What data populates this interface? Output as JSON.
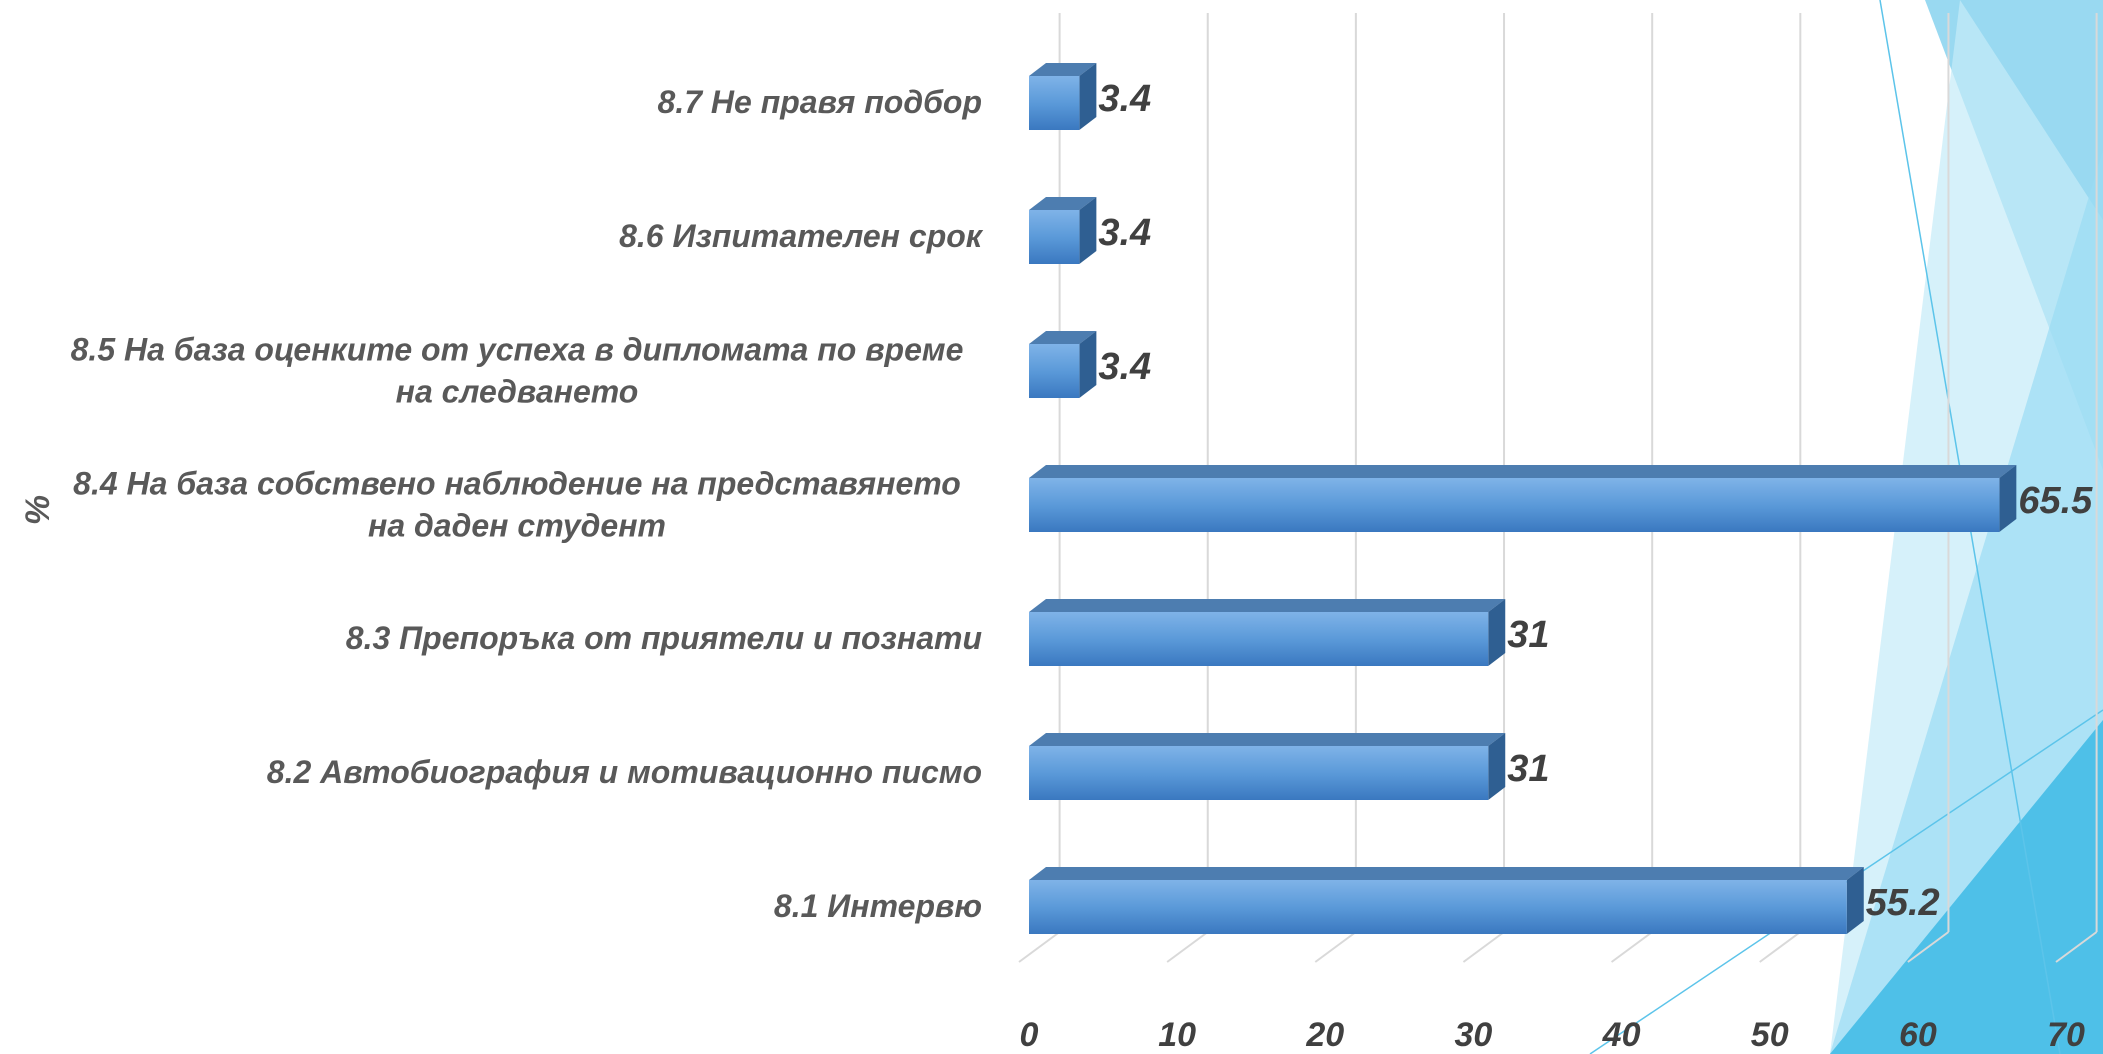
{
  "chart_data": {
    "type": "bar",
    "orientation": "horizontal",
    "axis_label": "%",
    "categories": [
      "8.1 Интервю",
      "8.2 Автобиография и мотивационно писмо",
      "8.3 Препоръка от приятели и познати",
      "8.4 На база собствено наблюдение  на представянето на даден студент",
      "8.5 На база оценките от успеха в дипломата по време на следването",
      "8.6 Изпитателен срок",
      "8.7 Не правя подбор"
    ],
    "values": [
      55.2,
      31,
      31,
      65.5,
      3.4,
      3.4,
      3.4
    ],
    "color": "#4a8fd6",
    "xlim": [
      0,
      70
    ],
    "xticks": [
      0,
      10,
      20,
      30,
      40,
      50,
      60,
      70
    ],
    "grid": true
  }
}
